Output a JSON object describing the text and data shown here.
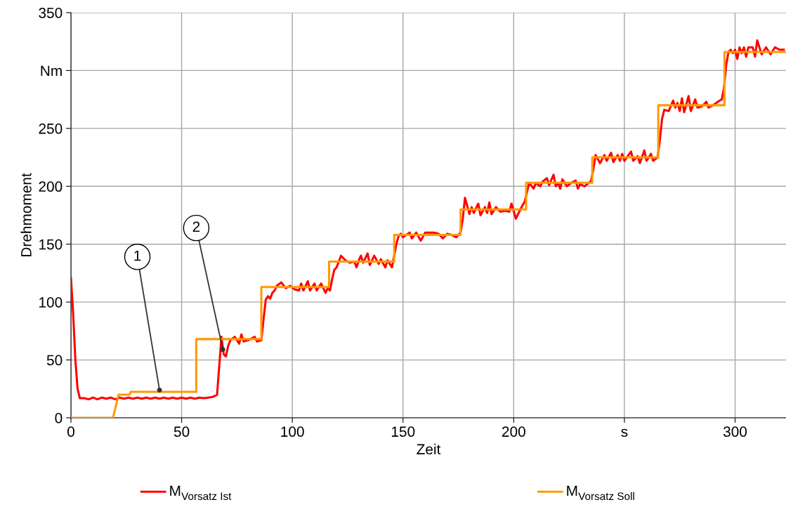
{
  "chart_data": {
    "type": "line",
    "xlabel": "Zeit",
    "ylabel": "Drehmoment",
    "xlim": [
      0,
      323
    ],
    "ylim": [
      0,
      350
    ],
    "xticks": [
      0,
      50,
      100,
      150,
      200,
      {
        "value": 250,
        "label": "s"
      },
      300
    ],
    "yticks": [
      0,
      50,
      100,
      150,
      200,
      250,
      {
        "value": 300,
        "label": "Nm"
      },
      350
    ],
    "grid": true,
    "legend": "bottom",
    "marker": "none",
    "line_style": "solid",
    "annotations": [
      {
        "text": "1",
        "x": 40,
        "y": 24
      },
      {
        "text": "2",
        "x": 68.6,
        "y": 59
      }
    ],
    "series": [
      {
        "name": "M$_{Vorsatz Ist}$",
        "color": "#ff0000",
        "x": [
          0,
          1,
          2,
          3,
          4,
          6,
          8,
          10,
          12,
          14,
          16,
          18,
          20,
          22,
          24,
          26,
          28,
          30,
          32,
          34,
          36,
          38,
          40,
          42,
          44,
          46,
          48,
          50,
          52,
          54,
          56,
          58,
          60,
          62,
          64,
          66,
          67,
          68,
          69,
          70,
          71,
          72,
          74,
          76,
          77,
          78,
          80,
          81,
          83,
          84,
          86,
          87,
          88,
          89,
          90,
          91,
          92,
          93,
          95,
          97,
          99,
          101,
          103,
          104,
          105,
          107,
          108,
          110,
          111,
          113,
          115,
          116,
          117,
          118,
          119,
          120,
          122,
          124,
          126,
          128,
          129,
          130,
          131,
          132,
          134,
          135,
          137,
          139,
          140,
          142,
          143,
          145,
          146,
          147,
          148,
          149,
          150,
          153,
          154,
          156,
          158,
          160,
          162,
          164,
          166,
          168,
          170,
          172,
          174,
          176,
          177,
          178,
          180,
          181,
          182,
          184,
          185,
          187,
          188,
          189,
          190,
          192,
          194,
          196,
          198,
          199,
          201,
          203,
          205,
          206,
          207,
          209,
          210,
          212,
          213,
          215,
          216,
          218,
          219,
          220,
          221,
          222,
          224,
          226,
          228,
          229,
          230,
          232,
          234,
          235,
          236,
          237,
          239,
          241,
          242,
          244,
          245,
          247,
          248,
          249,
          250,
          253,
          254,
          256,
          257,
          259,
          260,
          262,
          263,
          265,
          266,
          267,
          268,
          270,
          272,
          273,
          274,
          275,
          276,
          277,
          279,
          280,
          282,
          283,
          285,
          287,
          288,
          290,
          293,
          294,
          295,
          296,
          297,
          298,
          299,
          300,
          301,
          302,
          303,
          304,
          305,
          306,
          308,
          309,
          310,
          311,
          312,
          314,
          316,
          318,
          320,
          322
        ],
        "values": [
          121,
          90,
          50,
          25,
          17,
          17,
          16,
          17.5,
          16,
          17.5,
          16.5,
          17.5,
          16,
          17.5,
          16.5,
          17.5,
          16.5,
          17.5,
          16.5,
          17.5,
          16.5,
          17.5,
          16.5,
          17.5,
          16.5,
          17.5,
          16.5,
          17.5,
          16.5,
          17.5,
          16.5,
          17.5,
          17,
          17.5,
          18,
          20,
          45,
          70,
          55,
          53,
          62,
          67,
          70,
          64,
          72,
          66,
          67,
          68,
          70,
          66,
          67,
          85,
          102,
          105,
          103,
          108,
          110,
          114,
          117,
          112,
          114,
          111,
          110,
          116,
          110,
          118,
          110,
          116,
          110,
          116,
          108,
          112,
          110,
          120,
          128,
          130,
          140,
          136,
          134,
          135,
          130,
          136,
          140,
          134,
          142,
          132,
          140,
          133,
          137,
          130,
          136,
          130,
          140,
          150,
          157,
          159,
          156,
          160,
          155,
          160,
          153,
          160,
          160,
          160,
          159,
          155,
          159,
          158,
          156,
          160,
          172,
          190,
          176,
          182,
          177,
          185,
          175,
          182,
          177,
          186,
          176,
          182,
          178,
          179,
          178,
          185,
          172,
          180,
          187,
          195,
          203,
          198,
          203,
          200,
          204,
          207,
          201,
          210,
          200,
          203,
          198,
          206,
          200,
          203,
          205,
          198,
          202,
          200,
          203,
          205,
          215,
          227,
          220,
          227,
          222,
          229,
          221,
          227,
          222,
          228,
          222,
          230,
          222,
          226,
          220,
          231,
          222,
          228,
          222,
          225,
          240,
          258,
          266,
          265,
          274,
          268,
          272,
          265,
          276,
          264,
          278,
          265,
          275,
          268,
          269,
          273,
          268,
          270,
          274,
          275,
          285,
          305,
          316,
          318,
          315,
          318,
          310,
          320,
          315,
          320,
          312,
          320,
          320,
          312,
          326,
          320,
          314,
          320,
          314,
          320,
          318,
          318
        ]
      },
      {
        "name": "M$_{Vorsatz Soll}$",
        "color": "#ff9900",
        "x": [
          0,
          19,
          21.5,
          26.5,
          27,
          56.6,
          56.6,
          86,
          86,
          116.6,
          116.6,
          146,
          146,
          176,
          176,
          205.6,
          205.6,
          235.5,
          235.5,
          265.3,
          265.3,
          295.2,
          295.2,
          323
        ],
        "values": [
          0,
          0,
          20,
          20,
          22.5,
          22.5,
          68,
          68,
          113,
          113,
          135,
          135,
          158,
          158,
          180,
          180,
          203,
          203,
          225,
          225,
          270,
          270,
          316,
          316
        ]
      }
    ]
  }
}
